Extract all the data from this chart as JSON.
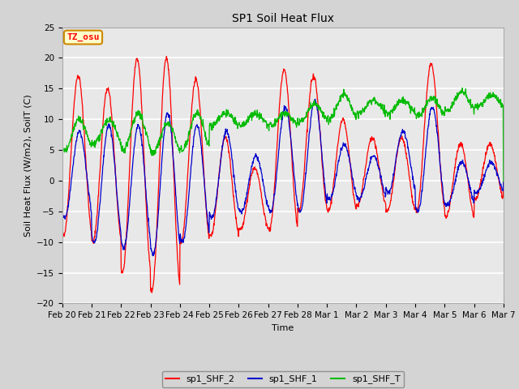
{
  "title": "SP1 Soil Heat Flux",
  "xlabel": "Time",
  "ylabel": "Soil Heat Flux (W/m2), SoilT (C)",
  "ylim": [
    -20,
    25
  ],
  "bg_color": "#d4d4d4",
  "plot_bg_color": "#e8e8e8",
  "tz_label": "TZ_osu",
  "tz_box_facecolor": "#ffffcc",
  "tz_box_edgecolor": "#cc8800",
  "legend_labels": [
    "sp1_SHF_2",
    "sp1_SHF_1",
    "sp1_SHF_T"
  ],
  "line_colors": [
    "#ff0000",
    "#0000cc",
    "#00bb00"
  ],
  "xticklabels": [
    "Feb 20",
    "Feb 21",
    "Feb 22",
    "Feb 23",
    "Feb 24",
    "Feb 25",
    "Feb 26",
    "Feb 27",
    "Feb 28",
    "Mar 1",
    "Mar 2",
    "Mar 3",
    "Mar 4",
    "Mar 5",
    "Mar 6",
    "Mar 7"
  ],
  "yticks": [
    -20,
    -15,
    -10,
    -5,
    0,
    5,
    10,
    15,
    20,
    25
  ],
  "n_days": 15,
  "title_fontsize": 10,
  "axis_label_fontsize": 8,
  "tick_fontsize": 7.5,
  "legend_fontsize": 8
}
